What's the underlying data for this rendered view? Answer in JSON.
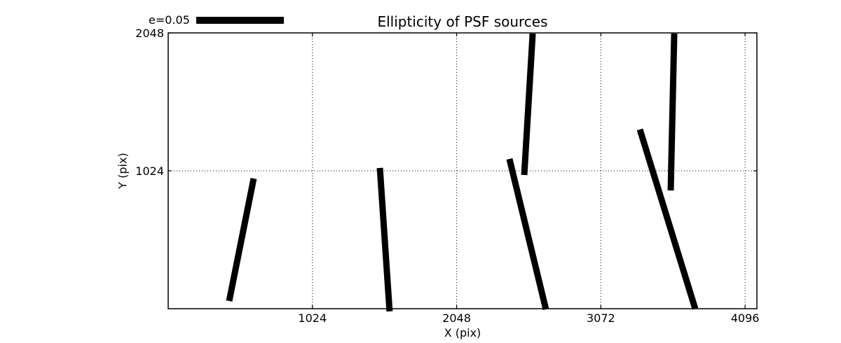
{
  "figure": {
    "background": "#ffffff",
    "foreground": "#000000"
  },
  "chart_data": {
    "type": "line",
    "subtype": "ellipticity-whisker-segments",
    "title": "Ellipticity of PSF sources",
    "xlabel": "X (pix)",
    "ylabel": "Y (pix)",
    "xlim": [
      0,
      4180
    ],
    "ylim": [
      0,
      2048
    ],
    "x_ticks": [
      1024,
      2048,
      3072,
      4096
    ],
    "y_ticks": [
      1024,
      2048
    ],
    "grid": {
      "style": "dotted",
      "color": "#000000",
      "on": true
    },
    "legend": {
      "label": "e=0.05",
      "position": "top-left"
    },
    "line_color": "#000000",
    "segments": [
      {
        "from": [
          607,
          967
        ],
        "to": [
          433,
          57
        ]
      },
      {
        "from": [
          1503,
          1045
        ],
        "to": [
          1572,
          -20
        ]
      },
      {
        "from": [
          2423,
          1112
        ],
        "to": [
          2682,
          -5
        ]
      },
      {
        "from": [
          2588,
          2043
        ],
        "to": [
          2528,
          993
        ]
      },
      {
        "from": [
          3593,
          2043
        ],
        "to": [
          3568,
          878
        ]
      },
      {
        "from": [
          3349,
          1331
        ],
        "to": [
          3742,
          0
        ]
      }
    ]
  }
}
